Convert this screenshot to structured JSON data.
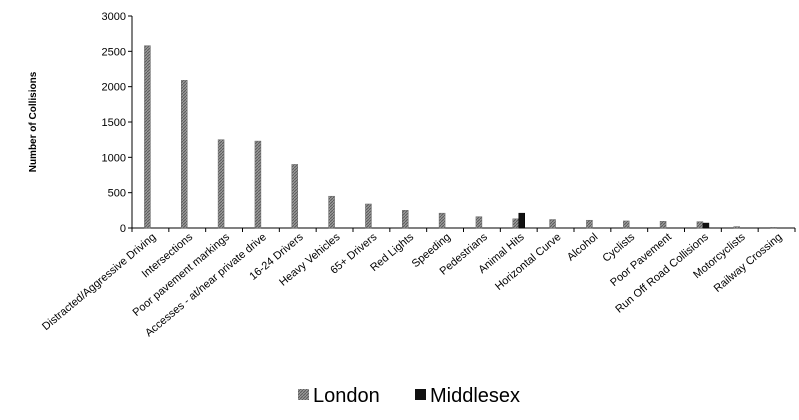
{
  "chart_data": {
    "type": "bar",
    "title": "",
    "xlabel": "",
    "ylabel": "Number of Collisions",
    "ylim": [
      0,
      3000
    ],
    "yticks": [
      0,
      500,
      1000,
      1500,
      2000,
      2500,
      3000
    ],
    "grid": false,
    "legend_position": "bottom",
    "categories": [
      "Distracted/Aggressive Driving",
      "Intersections",
      "Poor pavement markings",
      "Accesses - at/near private drive",
      "16-24 Drivers",
      "Heavy Vehicles",
      "65+ Drivers",
      "Red Lights",
      "Speeding",
      "Pedestrians",
      "Animal Hits",
      "Horizontal Curve",
      "Alcohol",
      "Cyclists",
      "Poor Pavement",
      "Run Off Road Collisions",
      "Motorcyclists",
      "Railway Crossing"
    ],
    "series": [
      {
        "name": "London",
        "color": "#8a8a8a",
        "values": [
          2580,
          2090,
          1250,
          1230,
          900,
          450,
          340,
          250,
          210,
          160,
          130,
          120,
          110,
          100,
          95,
          90,
          20,
          10
        ]
      },
      {
        "name": "Middlesex",
        "color": "#111111",
        "values": [
          0,
          0,
          0,
          0,
          0,
          0,
          0,
          0,
          0,
          0,
          210,
          0,
          0,
          0,
          0,
          70,
          0,
          0
        ]
      }
    ]
  }
}
